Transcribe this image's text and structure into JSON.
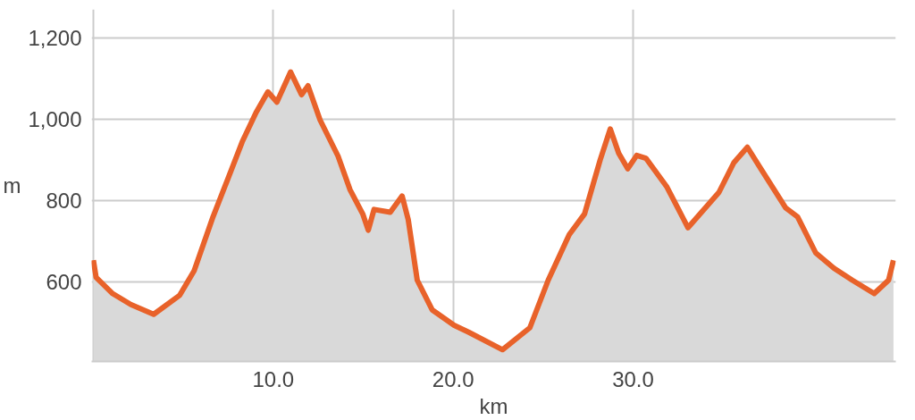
{
  "chart_data": {
    "type": "area",
    "xlabel": "km",
    "ylabel": "m",
    "xlim": [
      -0.1,
      44.6
    ],
    "ylim": [
      404,
      1270
    ],
    "xticks": [
      {
        "value": 0,
        "label": null
      },
      {
        "value": 10,
        "label": "10.0"
      },
      {
        "value": 20,
        "label": "20.0"
      },
      {
        "value": 30,
        "label": "30.0"
      }
    ],
    "yticks": [
      {
        "value": 600,
        "label": "600"
      },
      {
        "value": 800,
        "label": "800"
      },
      {
        "value": 1000,
        "label": "1,000"
      },
      {
        "value": 1200,
        "label": "1,200"
      }
    ],
    "grid": true,
    "line_style": "solid",
    "marker": "none",
    "series": [
      {
        "color": "#e8622a",
        "x": [
          0,
          0.15,
          1.07,
          2.08,
          3.35,
          4.8,
          5.6,
          6.65,
          7.5,
          8.27,
          9.04,
          9.7,
          10.2,
          10.96,
          11.57,
          11.93,
          12.6,
          13.6,
          14.26,
          14.97,
          15.28,
          15.6,
          16.5,
          17.16,
          17.5,
          18.0,
          18.83,
          20.05,
          20.86,
          22.74,
          24.26,
          25.28,
          26.45,
          27.3,
          28.17,
          28.73,
          29.2,
          29.7,
          30.2,
          30.71,
          31.88,
          33.05,
          34.77,
          35.6,
          36.35,
          37.1,
          38.48,
          39.14,
          40.15,
          41.17,
          42.18,
          43.4,
          44.2,
          44.47
        ],
        "values": [
          653,
          611,
          571,
          544,
          520,
          567,
          627,
          760,
          856,
          944,
          1016,
          1067,
          1042,
          1116,
          1060,
          1082,
          998,
          909,
          827,
          767,
          727,
          778,
          771,
          811,
          753,
          604,
          531,
          493,
          476,
          433,
          487,
          604,
          716,
          767,
          900,
          976,
          916,
          878,
          911,
          904,
          833,
          733,
          820,
          893,
          931,
          878,
          782,
          760,
          671,
          633,
          604,
          571,
          604,
          653
        ]
      }
    ]
  }
}
